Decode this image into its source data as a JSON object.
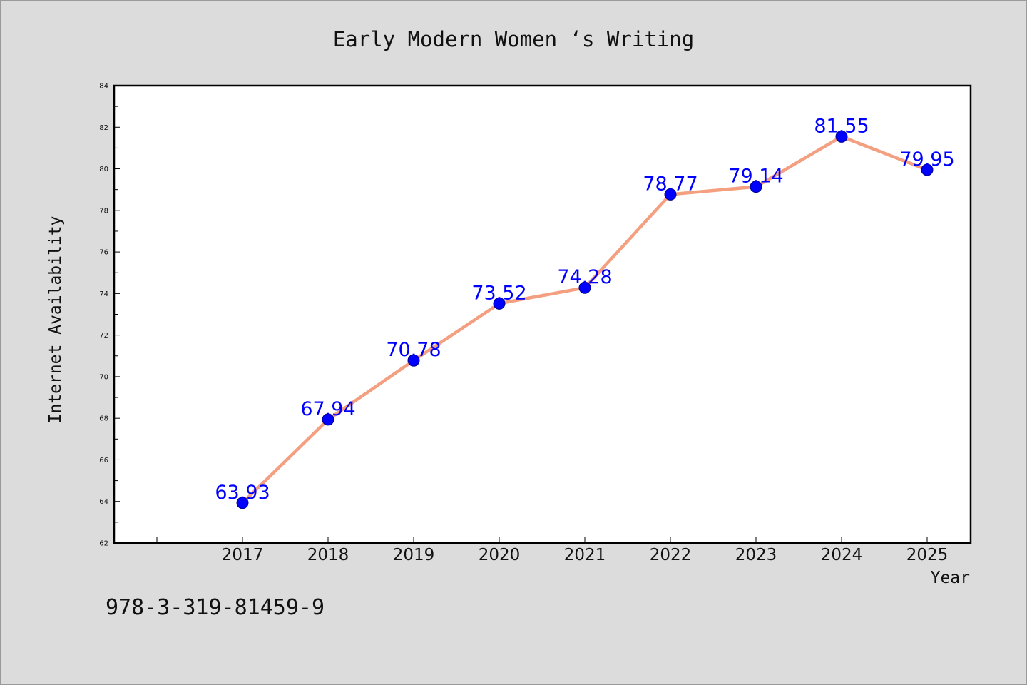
{
  "chart_data": {
    "type": "line",
    "title": "Early Modern Women ‘s Writing",
    "xlabel": "Year",
    "ylabel": "Internet Availability",
    "x": [
      "2017",
      "2018",
      "2019",
      "2020",
      "2021",
      "2022",
      "2023",
      "2024",
      "2025"
    ],
    "series": [
      {
        "values": [
          63.93,
          67.94,
          70.78,
          73.52,
          74.28,
          78.77,
          79.14,
          81.55,
          79.95
        ],
        "data_labels": [
          "63.93",
          "67.94",
          "70.78",
          "73.52",
          "74.28",
          "78.77",
          "79.14",
          "81.55",
          "79.95"
        ],
        "line_color": "#f4a080",
        "marker_color": "#0000ff"
      }
    ],
    "ylim": [
      62,
      84
    ],
    "yticks": [
      "62",
      "64",
      "66",
      "68",
      "70",
      "72",
      "74",
      "76",
      "78",
      "80",
      "82",
      "84"
    ],
    "grid": false,
    "legend": "none"
  },
  "note": "978-3-319-81459-9",
  "colors": {
    "background": "#dcdcdc",
    "plot_area": "#ffffff",
    "line": "#f4a080",
    "marker": "#0000ff",
    "data_label": "#0000ff"
  }
}
